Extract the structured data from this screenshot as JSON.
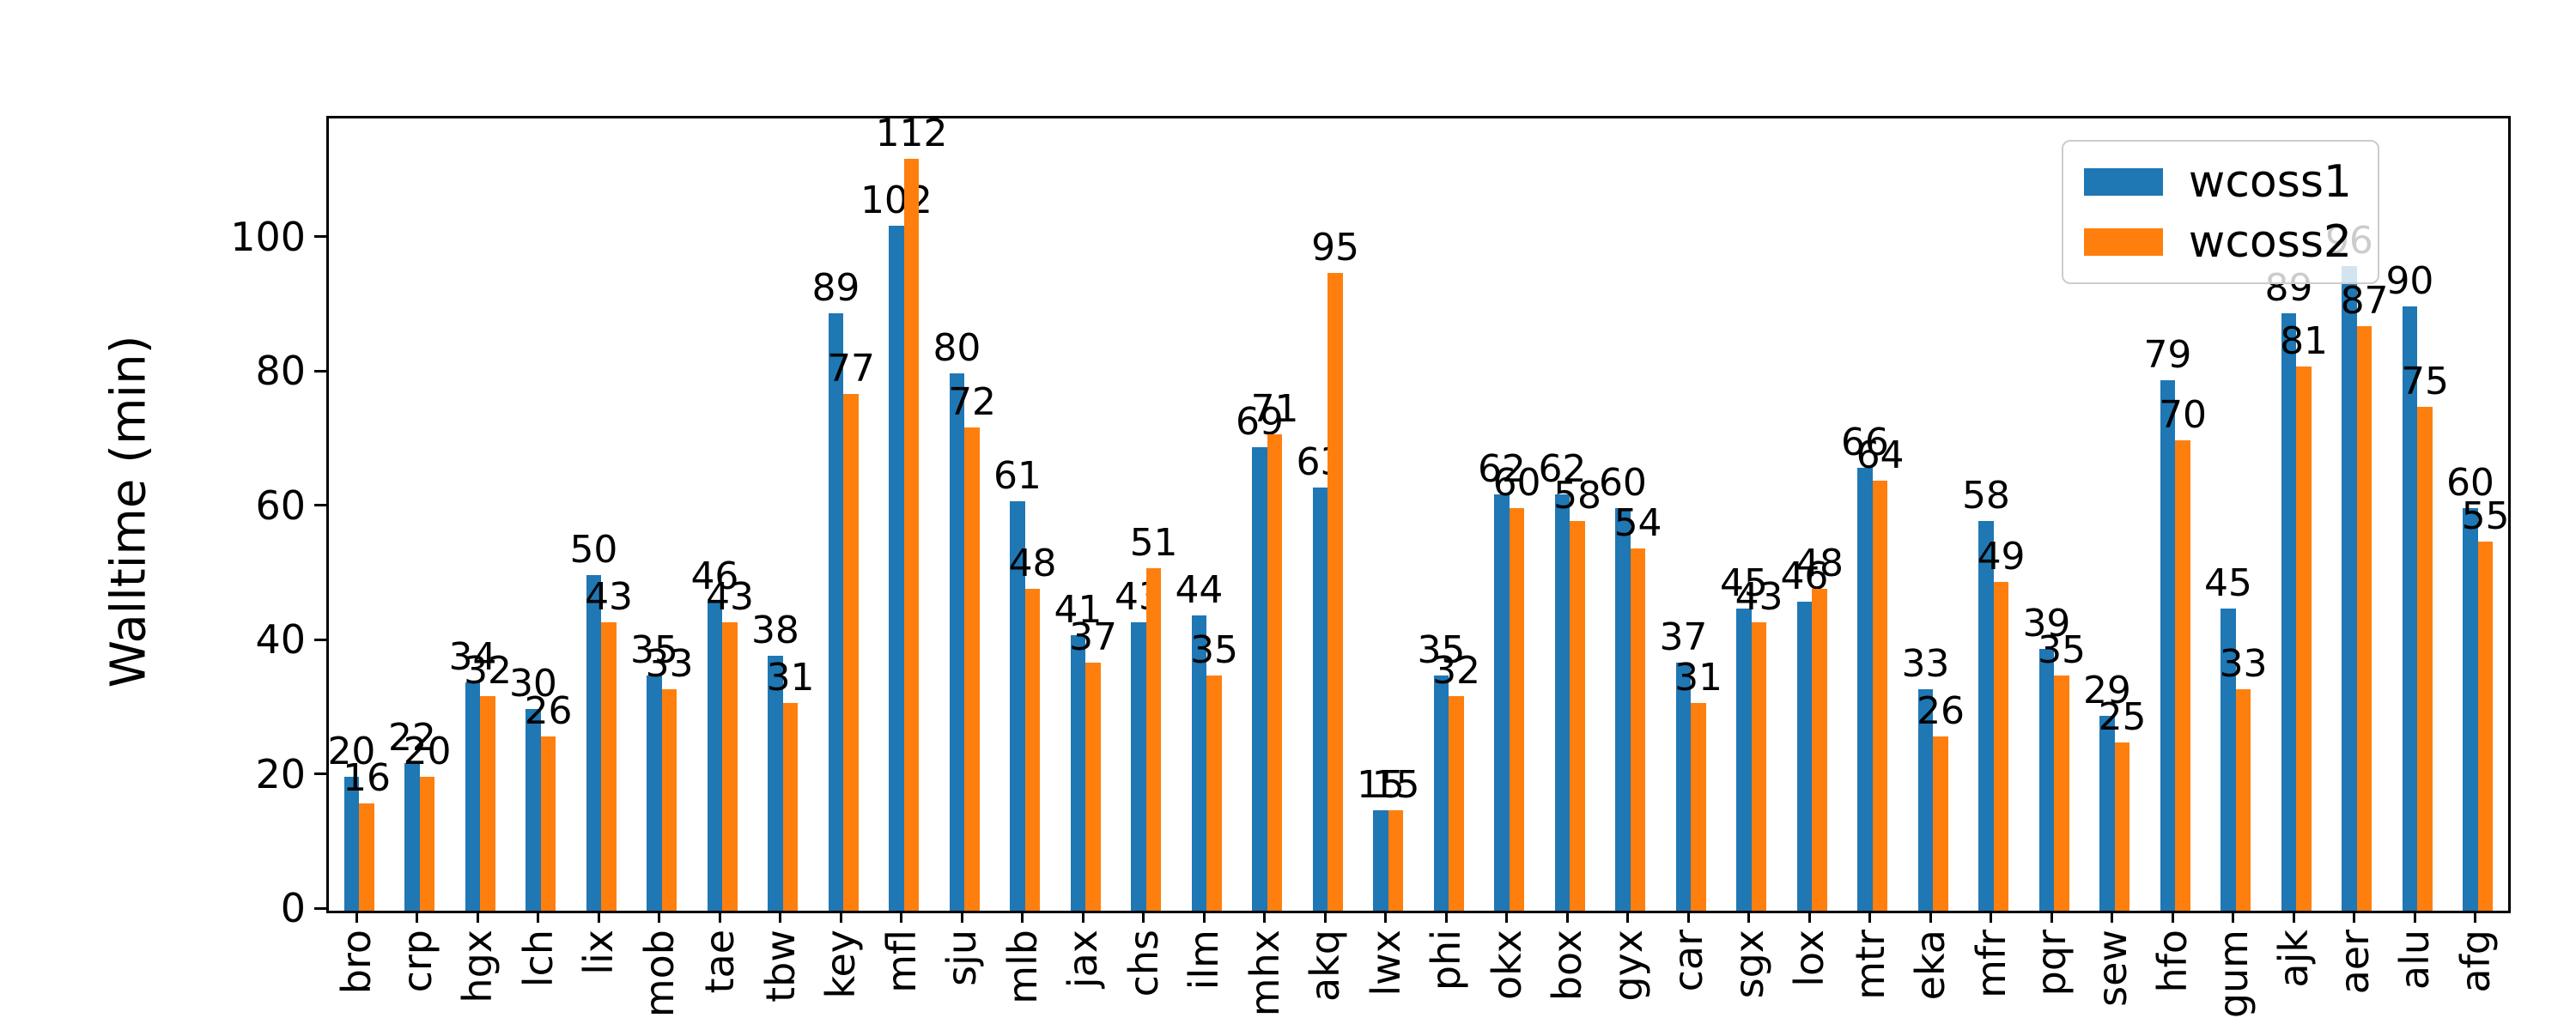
{
  "figure": {
    "background": "#ffffff",
    "text_color": "#000000"
  },
  "chart_data": {
    "type": "bar",
    "title": "",
    "xlabel": "",
    "ylabel": "Walltime (min)",
    "categories": [
      "bro",
      "crp",
      "hgx",
      "lch",
      "lix",
      "mob",
      "tae",
      "tbw",
      "key",
      "mfl",
      "sju",
      "mlb",
      "jax",
      "chs",
      "ilm",
      "mhx",
      "akq",
      "lwx",
      "phi",
      "okx",
      "box",
      "gyx",
      "car",
      "sgx",
      "lox",
      "mtr",
      "eka",
      "mfr",
      "pqr",
      "sew",
      "hfo",
      "gum",
      "ajk",
      "aer",
      "alu",
      "afg"
    ],
    "series": [
      {
        "name": "wcoss1",
        "color": "#1f77b4",
        "values": [
          20,
          22,
          34,
          30,
          50,
          35,
          46,
          38,
          89,
          102,
          80,
          61,
          41,
          43,
          44,
          69,
          63,
          15,
          35,
          62,
          62,
          60,
          37,
          45,
          46,
          66,
          33,
          58,
          39,
          29,
          79,
          45,
          89,
          96,
          90,
          60
        ]
      },
      {
        "name": "wcoss2",
        "color": "#ff7f0e",
        "values": [
          16,
          20,
          32,
          26,
          43,
          33,
          43,
          31,
          77,
          112,
          72,
          48,
          37,
          51,
          35,
          71,
          95,
          15,
          32,
          60,
          58,
          54,
          31,
          43,
          48,
          64,
          26,
          49,
          35,
          25,
          70,
          33,
          81,
          87,
          75,
          55
        ]
      }
    ],
    "ylim": [
      0,
      118
    ],
    "yticks": [
      0,
      20,
      40,
      60,
      80,
      100
    ],
    "bar_value_labels": true,
    "grid": false,
    "legend_position": "upper right"
  }
}
